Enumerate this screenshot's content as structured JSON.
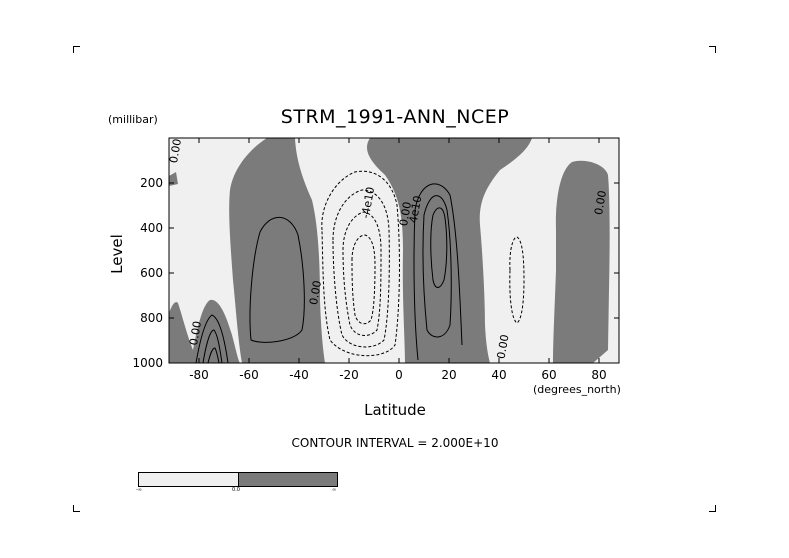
{
  "chart_data": {
    "type": "contour",
    "title": "STRM_1991-ANN_NCEP",
    "xlabel": "Latitude",
    "ylabel": "Level",
    "x_units": "(degrees_north)",
    "y_units": "(millibar)",
    "xlim": [
      -92,
      88
    ],
    "ylim": [
      1000,
      0
    ],
    "x_ticks": [
      -80,
      -60,
      -40,
      -20,
      0,
      20,
      40,
      60,
      80
    ],
    "y_ticks": [
      200,
      400,
      600,
      800,
      1000
    ],
    "contour_interval_text": "CONTOUR INTERVAL = 2.000E+10",
    "contour_labels": [
      {
        "text": "0.00",
        "lat": -88,
        "lev": 60
      },
      {
        "text": "0.00",
        "lat": -80,
        "lev": 870
      },
      {
        "text": "0.00",
        "lat": -32,
        "lev": 690
      },
      {
        "text": "-4e10",
        "lat": -11,
        "lev": 290
      },
      {
        "text": "0.00",
        "lat": 4,
        "lev": 340
      },
      {
        "text": "4e10",
        "lat": 8,
        "lev": 320
      },
      {
        "text": "0.00",
        "lat": 43,
        "lev": 930
      },
      {
        "text": "0.00",
        "lat": 82,
        "lev": 290
      }
    ],
    "shading": {
      "below_zero": "#f0f0f0",
      "above_zero": "#7b7b7b"
    },
    "colorbar_labels": [
      "-∞",
      "0.0",
      "∞"
    ]
  }
}
